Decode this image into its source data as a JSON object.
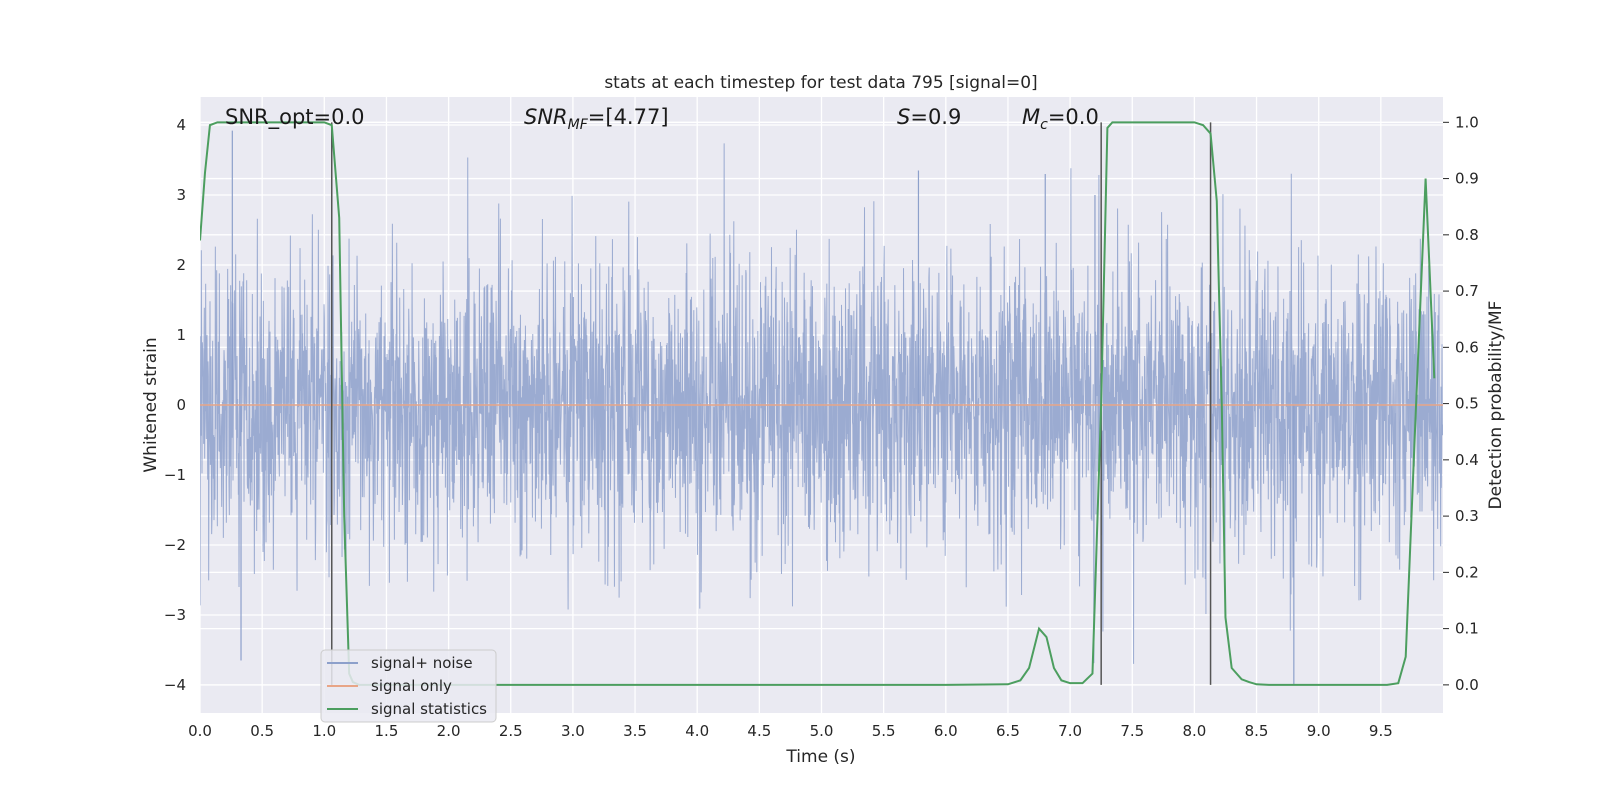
{
  "chart_data": {
    "type": "line",
    "title": "stats at each timestep for test data 795 [signal=0]",
    "xlabel": "Time (s)",
    "ylabel": "Whitened strain",
    "ylabel_right": "Detection probability/MF",
    "xlim": [
      0,
      10
    ],
    "ylim": [
      -4.4,
      4.4
    ],
    "ylim_right": [
      -0.05,
      1.045
    ],
    "x_ticks": [
      0.0,
      0.5,
      1.0,
      1.5,
      2.0,
      2.5,
      3.0,
      3.5,
      4.0,
      4.5,
      5.0,
      5.5,
      6.0,
      6.5,
      7.0,
      7.5,
      8.0,
      8.5,
      9.0,
      9.5
    ],
    "x_tick_labels": [
      "0.0",
      "0.5",
      "1.0",
      "1.5",
      "2.0",
      "2.5",
      "3.0",
      "3.5",
      "4.0",
      "4.5",
      "5.0",
      "5.5",
      "6.0",
      "6.5",
      "7.0",
      "7.5",
      "8.0",
      "8.5",
      "9.0",
      "9.5"
    ],
    "y_ticks": [
      -4,
      -3,
      -2,
      -1,
      0,
      1,
      2,
      3,
      4
    ],
    "y_tick_labels": [
      "−4",
      "−3",
      "−2",
      "−1",
      "0",
      "1",
      "2",
      "3",
      "4"
    ],
    "y_ticks_right": [
      0.0,
      0.1,
      0.2,
      0.3,
      0.4,
      0.5,
      0.6,
      0.7,
      0.8,
      0.9,
      1.0
    ],
    "y_tick_labels_right": [
      "0.0",
      "0.1",
      "0.2",
      "0.3",
      "0.4",
      "0.5",
      "0.6",
      "0.7",
      "0.8",
      "0.9",
      "1.0"
    ],
    "grid": true,
    "legend_position": "lower-left",
    "annotations": {
      "snr_opt": "SNR_opt=0.0",
      "snr_mf_main": "SNR",
      "snr_mf_sub": "MF",
      "snr_mf_value": "=[4.77]",
      "s_main": "S",
      "s_value": "=0.9",
      "mc_main": "M",
      "mc_sub": "c",
      "mc_value": "=0.0"
    },
    "vlines_x": [
      1.06,
      7.25,
      8.13
    ],
    "series": [
      {
        "name": "signal+ noise",
        "axis": "left",
        "color": "#8da0cb",
        "noise_sigma": 1.0,
        "notable_peaks": [
          [
            0.26,
            3.92
          ],
          [
            0.33,
            -3.65
          ],
          [
            5.78,
            3.35
          ],
          [
            6.8,
            3.3
          ],
          [
            7.2,
            3.0
          ],
          [
            8.8,
            -4.0
          ]
        ]
      },
      {
        "name": "signal only",
        "axis": "left",
        "color": "#e8a587",
        "x": [
          0,
          10
        ],
        "y": [
          0,
          0
        ]
      },
      {
        "name": "signal statistics",
        "axis": "right",
        "color": "#4c9e5f",
        "x": [
          0.0,
          0.04,
          0.08,
          0.14,
          0.25,
          0.5,
          0.8,
          1.0,
          1.06,
          1.12,
          1.16,
          1.2,
          1.23,
          1.28,
          1.4,
          1.6,
          2.0,
          3.0,
          4.0,
          5.0,
          6.0,
          6.5,
          6.6,
          6.67,
          6.75,
          6.81,
          6.87,
          6.93,
          7.0,
          7.1,
          7.18,
          7.25,
          7.3,
          7.34,
          7.4,
          7.6,
          7.8,
          8.0,
          8.07,
          8.13,
          8.18,
          8.22,
          8.25,
          8.3,
          8.38,
          8.44,
          8.5,
          8.6,
          8.8,
          9.0,
          9.3,
          9.55,
          9.64,
          9.7,
          9.78,
          9.86,
          9.93
        ],
        "y": [
          0.79,
          0.91,
          0.995,
          1.0,
          1.0,
          1.0,
          1.0,
          1.0,
          0.995,
          0.83,
          0.3,
          0.02,
          0.005,
          0.0,
          0.0,
          0.0,
          0.0,
          0.0,
          0.0,
          0.0,
          0.0,
          0.001,
          0.008,
          0.03,
          0.1,
          0.085,
          0.03,
          0.008,
          0.003,
          0.003,
          0.02,
          0.5,
          0.99,
          1.0,
          1.0,
          1.0,
          1.0,
          1.0,
          0.995,
          0.98,
          0.86,
          0.5,
          0.12,
          0.03,
          0.01,
          0.005,
          0.001,
          0.0,
          0.0,
          0.0,
          0.0,
          0.0,
          0.003,
          0.05,
          0.48,
          0.9,
          0.545
        ]
      }
    ]
  }
}
